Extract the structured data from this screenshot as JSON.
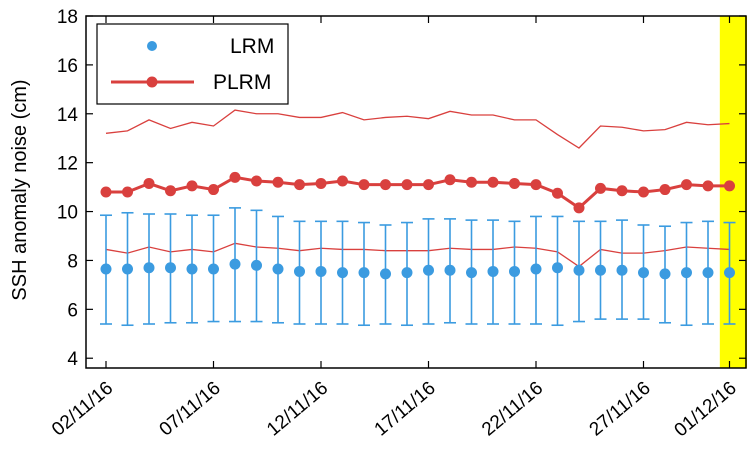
{
  "chart_data": {
    "type": "line",
    "ylabel": "SSH anomaly noise (cm)",
    "xlabel": "",
    "ylim": [
      3.6,
      18
    ],
    "yticks": [
      4,
      6,
      8,
      10,
      12,
      14,
      16,
      18
    ],
    "x": [
      "02/11/16",
      "03/11/16",
      "04/11/16",
      "05/11/16",
      "06/11/16",
      "07/11/16",
      "08/11/16",
      "09/11/16",
      "10/11/16",
      "11/11/16",
      "12/11/16",
      "13/11/16",
      "14/11/16",
      "15/11/16",
      "16/11/16",
      "17/11/16",
      "18/11/16",
      "19/11/16",
      "20/11/16",
      "21/11/16",
      "22/11/16",
      "23/11/16",
      "24/11/16",
      "25/11/16",
      "26/11/16",
      "27/11/16",
      "28/11/16",
      "29/11/16",
      "30/11/16",
      "01/12/16"
    ],
    "xtick_labels": [
      "02/11/16",
      "07/11/16",
      "12/11/16",
      "17/11/16",
      "22/11/16",
      "27/11/16",
      "01/12/16"
    ],
    "highlight": {
      "color": "#ffff00",
      "from_index": 28.55,
      "to_index": 29.9
    },
    "series": [
      {
        "name": "LRM",
        "color": "#3b9be0",
        "values": [
          7.65,
          7.65,
          7.7,
          7.7,
          7.65,
          7.65,
          7.85,
          7.8,
          7.65,
          7.55,
          7.55,
          7.5,
          7.5,
          7.45,
          7.5,
          7.6,
          7.6,
          7.5,
          7.55,
          7.55,
          7.65,
          7.7,
          7.6,
          7.6,
          7.6,
          7.5,
          7.45,
          7.5,
          7.5,
          7.5
        ],
        "error_low": [
          5.4,
          5.35,
          5.4,
          5.45,
          5.45,
          5.5,
          5.5,
          5.5,
          5.45,
          5.4,
          5.4,
          5.4,
          5.35,
          5.4,
          5.35,
          5.4,
          5.45,
          5.4,
          5.4,
          5.4,
          5.4,
          5.35,
          5.5,
          5.6,
          5.6,
          5.6,
          5.45,
          5.35,
          5.4,
          5.4
        ],
        "error_high": [
          9.85,
          9.95,
          9.9,
          9.9,
          9.85,
          9.85,
          10.15,
          10.05,
          9.8,
          9.6,
          9.6,
          9.6,
          9.55,
          9.45,
          9.55,
          9.7,
          9.7,
          9.65,
          9.65,
          9.6,
          9.8,
          9.8,
          9.6,
          9.6,
          9.65,
          9.45,
          9.4,
          9.55,
          9.6,
          9.55
        ]
      },
      {
        "name": "PLRM",
        "color": "#d9403e",
        "values": [
          10.8,
          10.8,
          11.15,
          10.85,
          11.05,
          10.9,
          11.4,
          11.25,
          11.2,
          11.1,
          11.15,
          11.25,
          11.1,
          11.1,
          11.1,
          11.1,
          11.3,
          11.2,
          11.2,
          11.15,
          11.1,
          10.75,
          10.15,
          10.95,
          10.85,
          10.8,
          10.9,
          11.1,
          11.05,
          11.05
        ],
        "band_high": [
          13.2,
          13.3,
          13.75,
          13.4,
          13.65,
          13.5,
          14.15,
          14.0,
          14.0,
          13.85,
          13.85,
          14.05,
          13.75,
          13.85,
          13.9,
          13.8,
          14.1,
          13.95,
          13.95,
          13.75,
          13.75,
          13.15,
          12.6,
          13.5,
          13.45,
          13.3,
          13.35,
          13.65,
          13.55,
          13.6
        ],
        "band_low": [
          8.45,
          8.3,
          8.55,
          8.35,
          8.45,
          8.35,
          8.7,
          8.55,
          8.5,
          8.4,
          8.5,
          8.45,
          8.45,
          8.4,
          8.4,
          8.4,
          8.5,
          8.45,
          8.45,
          8.55,
          8.5,
          8.35,
          7.75,
          8.45,
          8.3,
          8.3,
          8.4,
          8.55,
          8.5,
          8.45
        ]
      }
    ],
    "legend": {
      "placement": "top-left",
      "entries": [
        "LRM",
        "PLRM"
      ]
    }
  }
}
